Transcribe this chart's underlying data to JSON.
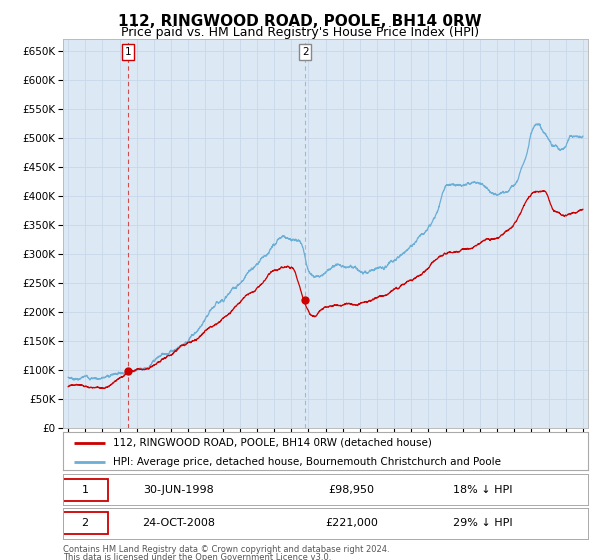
{
  "title": "112, RINGWOOD ROAD, POOLE, BH14 0RW",
  "subtitle": "Price paid vs. HM Land Registry's House Price Index (HPI)",
  "yticks": [
    0,
    50000,
    100000,
    150000,
    200000,
    250000,
    300000,
    350000,
    400000,
    450000,
    500000,
    550000,
    600000,
    650000
  ],
  "ytick_labels": [
    "£0",
    "£50K",
    "£100K",
    "£150K",
    "£200K",
    "£250K",
    "£300K",
    "£350K",
    "£400K",
    "£450K",
    "£500K",
    "£550K",
    "£600K",
    "£650K"
  ],
  "ylim": [
    0,
    670000
  ],
  "xlim_start": 1994.7,
  "xlim_end": 2025.3,
  "sale1_x": 1998.495,
  "sale1_y": 98950,
  "sale2_x": 2008.81,
  "sale2_y": 221000,
  "legend_property": "112, RINGWOOD ROAD, POOLE, BH14 0RW (detached house)",
  "legend_hpi": "HPI: Average price, detached house, Bournemouth Christchurch and Poole",
  "table_row1": [
    "1",
    "30-JUN-1998",
    "£98,950",
    "18% ↓ HPI"
  ],
  "table_row2": [
    "2",
    "24-OCT-2008",
    "£221,000",
    "29% ↓ HPI"
  ],
  "property_color": "#cc0000",
  "hpi_color": "#6baed6",
  "plot_bg_color": "#dce9f5",
  "grid_color": "#c8d8e8",
  "footnote1": "Contains HM Land Registry data © Crown copyright and database right 2024.",
  "footnote2": "This data is licensed under the Open Government Licence v3.0.",
  "sale1_vline_color": "#cc3333",
  "sale2_vline_color": "#aaaaaa",
  "title_fontsize": 11,
  "subtitle_fontsize": 9,
  "tick_fontsize": 7.5,
  "legend_fontsize": 7.5,
  "table_fontsize": 8
}
